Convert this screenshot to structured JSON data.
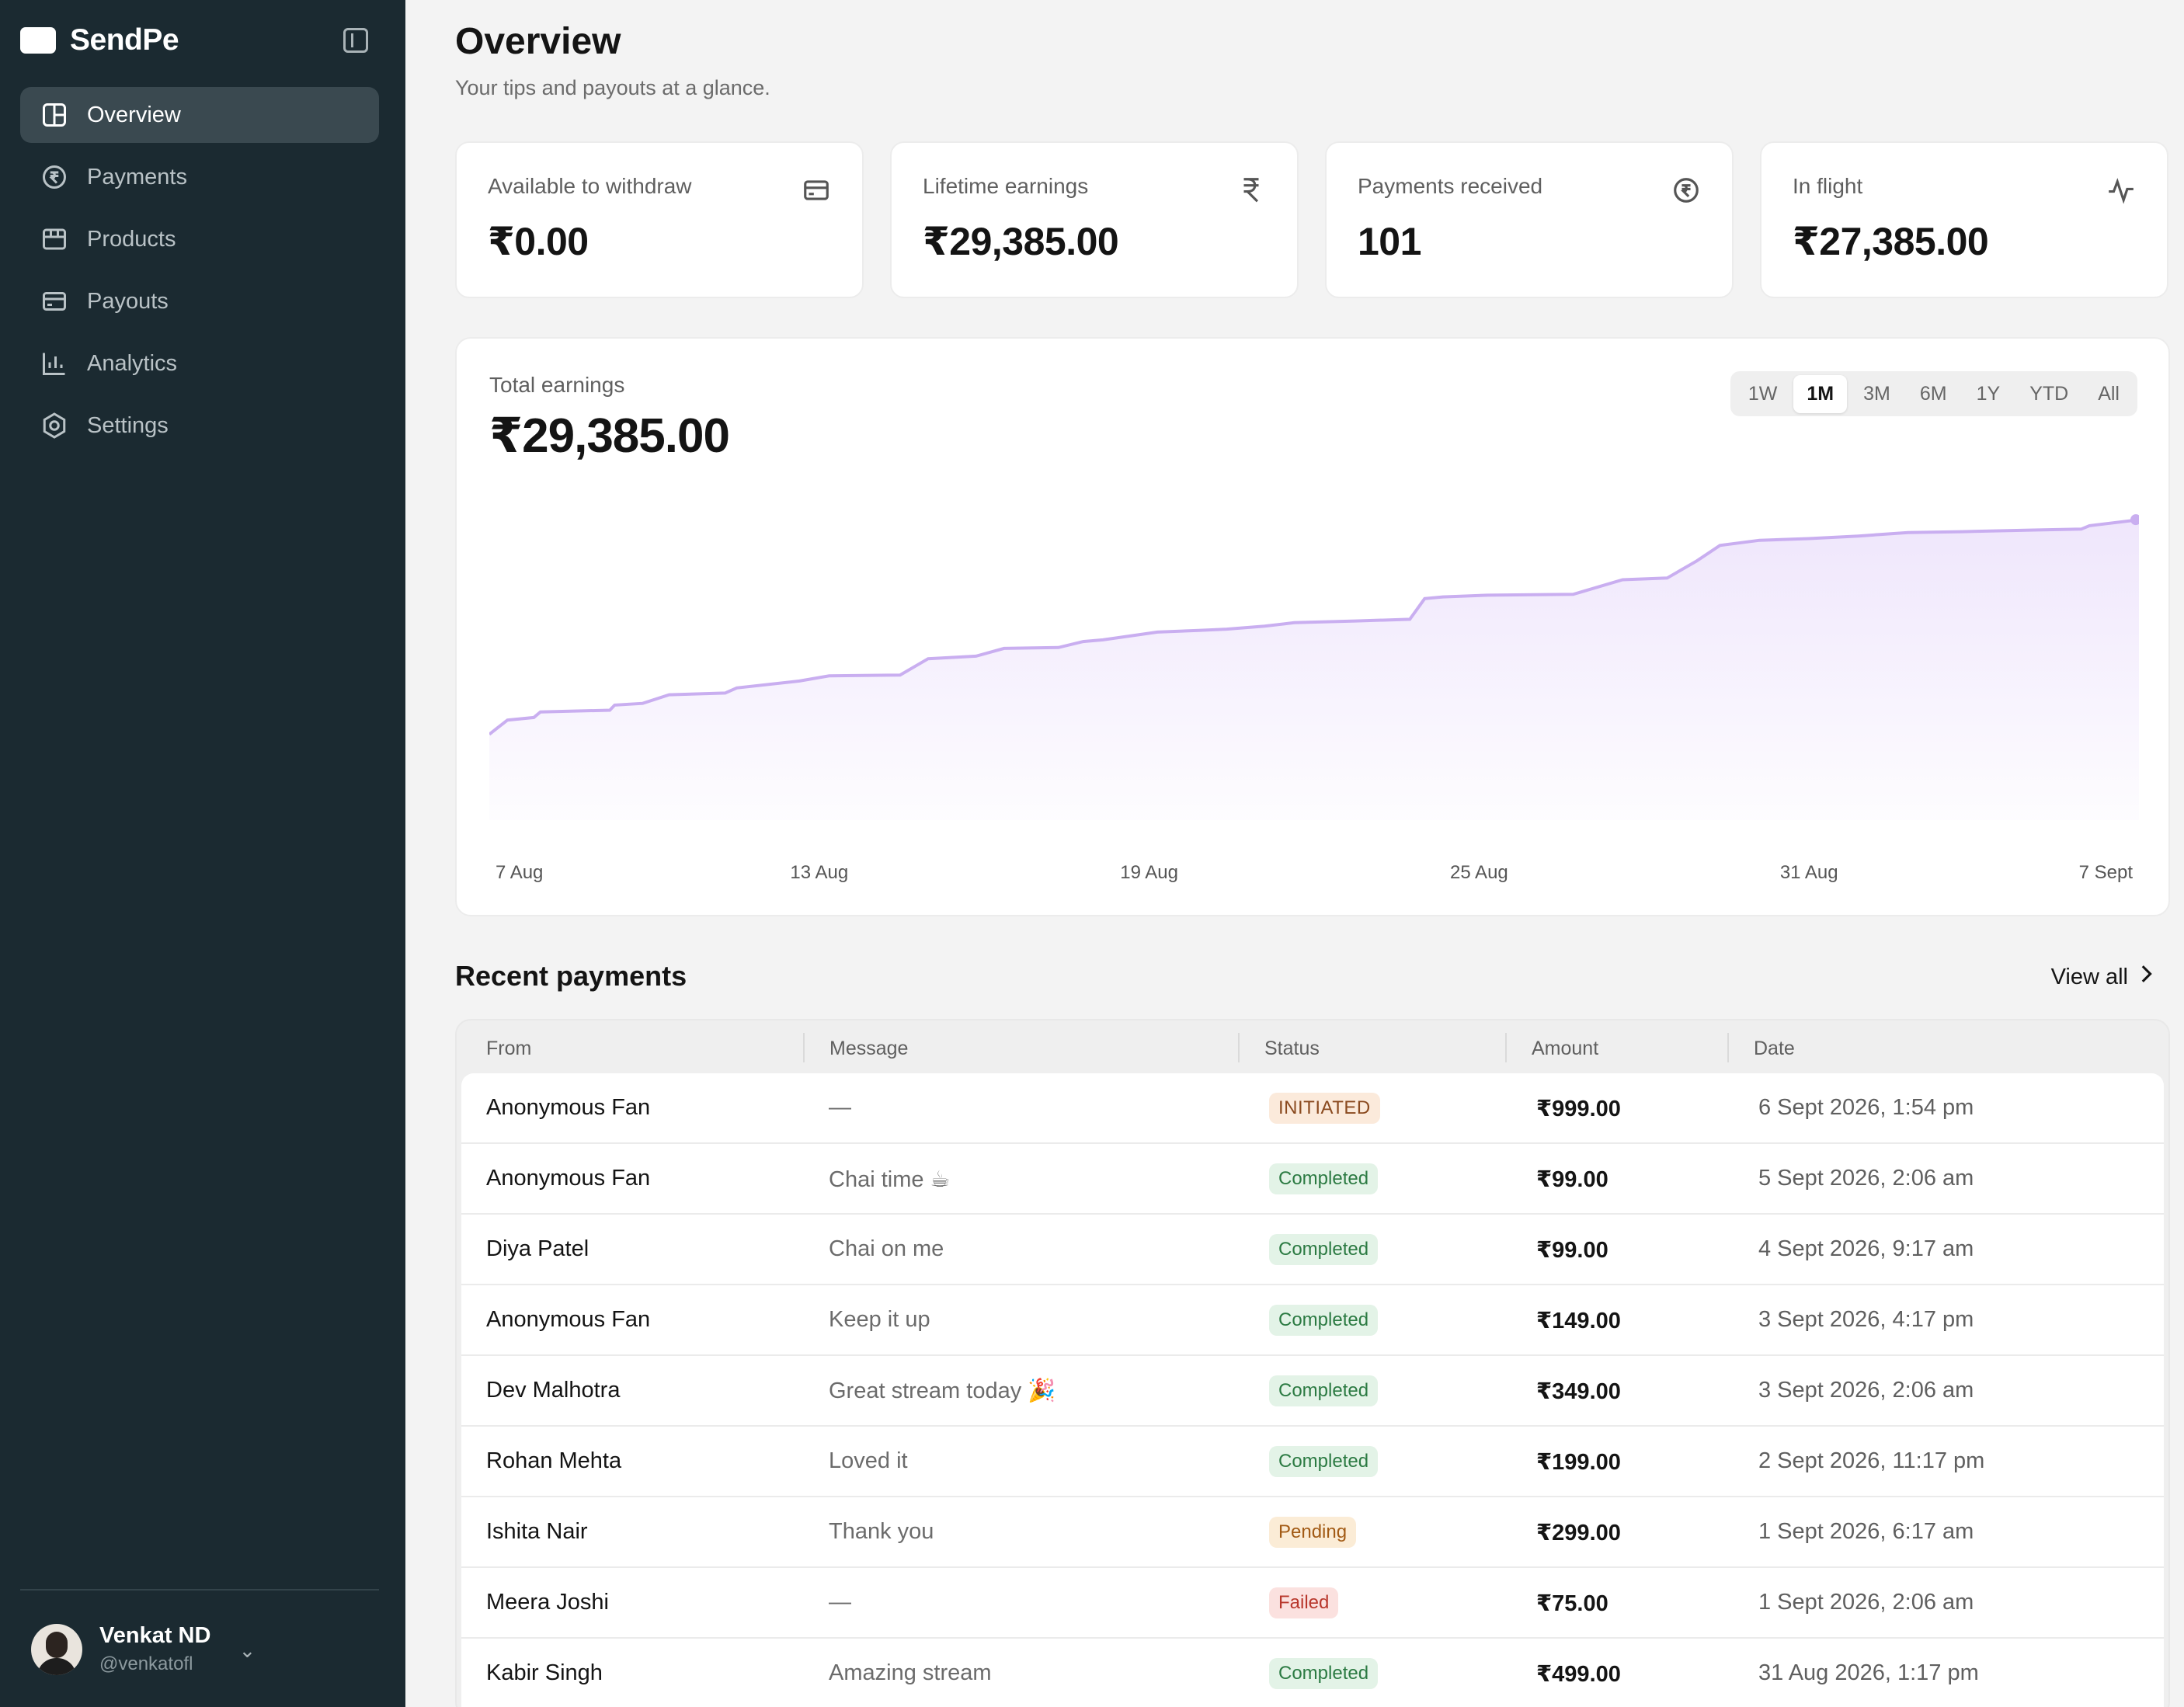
{
  "app": {
    "name": "SendPe"
  },
  "sidebar": {
    "items": [
      {
        "label": "Overview",
        "icon": "layout-grid-icon",
        "active": true
      },
      {
        "label": "Payments",
        "icon": "rupee-circle-icon",
        "active": false
      },
      {
        "label": "Products",
        "icon": "store-icon",
        "active": false
      },
      {
        "label": "Payouts",
        "icon": "wallet-icon",
        "active": false
      },
      {
        "label": "Analytics",
        "icon": "bar-chart-icon",
        "active": false
      },
      {
        "label": "Settings",
        "icon": "gear-icon",
        "active": false
      }
    ],
    "user": {
      "name": "Venkat ND",
      "handle": "@venkatofl"
    }
  },
  "header": {
    "title": "Overview",
    "subtitle": "Your tips and payouts at a glance."
  },
  "stats": [
    {
      "label": "Available to withdraw",
      "value": "₹0.00",
      "icon": "wallet-icon"
    },
    {
      "label": "Lifetime earnings",
      "value": "₹29,385.00",
      "icon": "rupee-icon"
    },
    {
      "label": "Payments received",
      "value": "101",
      "icon": "rupee-circle-icon"
    },
    {
      "label": "In flight",
      "value": "₹27,385.00",
      "icon": "activity-icon"
    }
  ],
  "earnings": {
    "label": "Total earnings",
    "value": "₹29,385.00",
    "ranges": [
      "1W",
      "1M",
      "3M",
      "6M",
      "1Y",
      "YTD",
      "All"
    ],
    "active_range": "1M"
  },
  "chart_data": {
    "type": "area",
    "x_tick_labels": [
      "7 Aug",
      "13 Aug",
      "19 Aug",
      "25 Aug",
      "31 Aug",
      "7 Sept"
    ],
    "color": "#c9aef0",
    "fill": "#efe6fc",
    "points": [
      {
        "x": 0.0,
        "y": 2000
      },
      {
        "x": 0.011,
        "y": 2330
      },
      {
        "x": 0.027,
        "y": 2390
      },
      {
        "x": 0.031,
        "y": 2520
      },
      {
        "x": 0.073,
        "y": 2560
      },
      {
        "x": 0.076,
        "y": 2680
      },
      {
        "x": 0.093,
        "y": 2720
      },
      {
        "x": 0.109,
        "y": 2920
      },
      {
        "x": 0.143,
        "y": 2960
      },
      {
        "x": 0.15,
        "y": 3080
      },
      {
        "x": 0.188,
        "y": 3240
      },
      {
        "x": 0.206,
        "y": 3360
      },
      {
        "x": 0.249,
        "y": 3380
      },
      {
        "x": 0.266,
        "y": 3760
      },
      {
        "x": 0.295,
        "y": 3820
      },
      {
        "x": 0.312,
        "y": 4000
      },
      {
        "x": 0.345,
        "y": 4020
      },
      {
        "x": 0.36,
        "y": 4160
      },
      {
        "x": 0.372,
        "y": 4200
      },
      {
        "x": 0.405,
        "y": 4380
      },
      {
        "x": 0.43,
        "y": 4420
      },
      {
        "x": 0.447,
        "y": 4450
      },
      {
        "x": 0.47,
        "y": 4520
      },
      {
        "x": 0.488,
        "y": 4600
      },
      {
        "x": 0.525,
        "y": 4640
      },
      {
        "x": 0.558,
        "y": 4680
      },
      {
        "x": 0.567,
        "y": 5160
      },
      {
        "x": 0.578,
        "y": 5200
      },
      {
        "x": 0.605,
        "y": 5240
      },
      {
        "x": 0.657,
        "y": 5260
      },
      {
        "x": 0.687,
        "y": 5600
      },
      {
        "x": 0.714,
        "y": 5640
      },
      {
        "x": 0.732,
        "y": 6040
      },
      {
        "x": 0.746,
        "y": 6400
      },
      {
        "x": 0.77,
        "y": 6520
      },
      {
        "x": 0.8,
        "y": 6560
      },
      {
        "x": 0.83,
        "y": 6620
      },
      {
        "x": 0.86,
        "y": 6700
      },
      {
        "x": 0.893,
        "y": 6720
      },
      {
        "x": 0.939,
        "y": 6760
      },
      {
        "x": 0.965,
        "y": 6780
      },
      {
        "x": 0.97,
        "y": 6860
      },
      {
        "x": 1.0,
        "y": 7000
      }
    ],
    "ylim": [
      0,
      7600
    ]
  },
  "recent": {
    "title": "Recent payments",
    "view_all": "View all",
    "columns": [
      "From",
      "Message",
      "Status",
      "Amount",
      "Date"
    ],
    "rows": [
      {
        "from": "Anonymous Fan",
        "message": "—",
        "status": "INITIATED",
        "status_kind": "initiated",
        "amount": "₹999.00",
        "date": "6 Sept 2026, 1:54 pm"
      },
      {
        "from": "Anonymous Fan",
        "message": "Chai time ☕",
        "status": "Completed",
        "status_kind": "completed",
        "amount": "₹99.00",
        "date": "5 Sept 2026, 2:06 am"
      },
      {
        "from": "Diya Patel",
        "message": "Chai on me",
        "status": "Completed",
        "status_kind": "completed",
        "amount": "₹99.00",
        "date": "4 Sept 2026, 9:17 am"
      },
      {
        "from": "Anonymous Fan",
        "message": "Keep it up",
        "status": "Completed",
        "status_kind": "completed",
        "amount": "₹149.00",
        "date": "3 Sept 2026, 4:17 pm"
      },
      {
        "from": "Dev Malhotra",
        "message": "Great stream today 🎉",
        "status": "Completed",
        "status_kind": "completed",
        "amount": "₹349.00",
        "date": "3 Sept 2026, 2:06 am"
      },
      {
        "from": "Rohan Mehta",
        "message": "Loved it",
        "status": "Completed",
        "status_kind": "completed",
        "amount": "₹199.00",
        "date": "2 Sept 2026, 11:17 pm"
      },
      {
        "from": "Ishita Nair",
        "message": "Thank you",
        "status": "Pending",
        "status_kind": "pending",
        "amount": "₹299.00",
        "date": "1 Sept 2026, 6:17 am"
      },
      {
        "from": "Meera Joshi",
        "message": "—",
        "status": "Failed",
        "status_kind": "failed",
        "amount": "₹75.00",
        "date": "1 Sept 2026, 2:06 am"
      },
      {
        "from": "Kabir Singh",
        "message": "Amazing stream",
        "status": "Completed",
        "status_kind": "completed",
        "amount": "₹499.00",
        "date": "31 Aug 2026, 1:17 pm"
      }
    ]
  }
}
